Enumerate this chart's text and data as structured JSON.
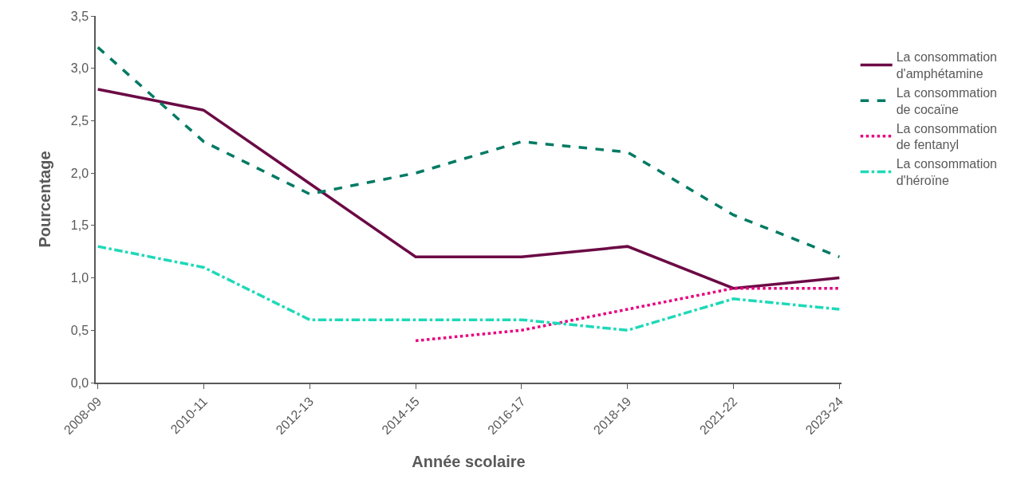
{
  "chart_data": {
    "type": "line",
    "xlabel": "Année scolaire",
    "ylabel": "Pourcentage",
    "categories": [
      "2008-09",
      "2010-11",
      "2012-13",
      "2014-15",
      "2016-17",
      "2018-19",
      "2021-22",
      "2023-24"
    ],
    "series": [
      {
        "name": "La consommation\nd'amphétamine",
        "color": "#6b0a45",
        "line_style": "solid",
        "values": [
          2.8,
          2.6,
          1.9,
          1.2,
          1.2,
          1.3,
          0.9,
          1.0
        ]
      },
      {
        "name": "La consommation\nde cocaïne",
        "color": "#007a63",
        "line_style": "dashed",
        "values": [
          3.2,
          2.3,
          1.8,
          2.0,
          2.3,
          2.2,
          1.6,
          1.2
        ]
      },
      {
        "name": "La consommation\nde fentanyl",
        "color": "#e6007e",
        "line_style": "dotted",
        "values": [
          null,
          null,
          null,
          0.4,
          0.5,
          0.7,
          0.9,
          0.9
        ]
      },
      {
        "name": "La consommation\nd'héroïne",
        "color": "#1ed9b8",
        "line_style": "dashdot",
        "values": [
          1.3,
          1.1,
          0.6,
          0.6,
          0.6,
          0.5,
          0.8,
          0.7
        ]
      }
    ],
    "ylim": [
      0,
      3.5
    ],
    "yticks": [
      {
        "value": 0,
        "label": "0,0"
      },
      {
        "value": 0.5,
        "label": "0,5"
      },
      {
        "value": 1,
        "label": "1,0"
      },
      {
        "value": 1.5,
        "label": "1,5"
      },
      {
        "value": 2,
        "label": "2,0"
      },
      {
        "value": 2.5,
        "label": "2,5"
      },
      {
        "value": 3,
        "label": "3,0"
      },
      {
        "value": 3.5,
        "label": "3,5"
      }
    ],
    "legend": "right",
    "marker": "none"
  }
}
